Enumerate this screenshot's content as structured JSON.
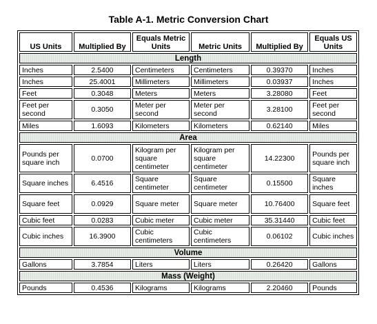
{
  "title": "Table A-1. Metric Conversion Chart",
  "headers": [
    "US Units",
    "Multiplied By",
    "Equals Metric Units",
    "Metric Units",
    "Multiplied  By",
    "Equals US Units"
  ],
  "sections": [
    {
      "name": "Length",
      "rows": [
        [
          "Inches",
          "2.5400",
          "Centimeters",
          "Centimeters",
          "0.39370",
          "Inches"
        ],
        [
          "Inches",
          "25.4001",
          "Millimeters",
          "Millimeters",
          "0.03937",
          "Inches"
        ],
        [
          "Feet",
          "0.3048",
          "Meters",
          "Meters",
          "3.28080",
          "Feet"
        ],
        [
          "Feet per second",
          "0.3050",
          "Meter per second",
          "Meter per second",
          "3.28100",
          "Feet per second"
        ],
        [
          "Miles",
          "1.6093",
          "Kilometers",
          "Kilometers",
          "0.62140",
          "Miles"
        ]
      ]
    },
    {
      "name": "Area",
      "rows": [
        [
          "Pounds per square inch",
          "0.0700",
          "Kilogram per square centimeter",
          "Kilogram per square centimeter",
          "14.22300",
          "Pounds per square inch"
        ],
        [
          "Square inches",
          "6.4516",
          "Square centimeter",
          "Square centimeter",
          "0.15500",
          "Square inches"
        ],
        [
          "Square feet",
          "0.0929",
          "Square meter",
          "Square meter",
          "10.76400",
          "Square feet"
        ],
        [
          "Cubic feet",
          "0.0283",
          "Cubic meter",
          "Cubic meter",
          "35.31440",
          "Cubic feet"
        ],
        [
          "Cubic inches",
          "16.3900",
          "Cubic centimeters",
          "Cubic centimeters",
          "0.06102",
          "Cubic inches"
        ]
      ]
    },
    {
      "name": "Volume",
      "rows": [
        [
          "Gallons",
          "3.7854",
          "Liters",
          "Liters",
          "0.26420",
          "Gallons"
        ]
      ]
    },
    {
      "name": "Mass (Weight)",
      "rows": [
        [
          "Pounds",
          "0.4536",
          "Kilograms",
          "Kilograms",
          "2.20460",
          "Pounds"
        ]
      ]
    }
  ]
}
